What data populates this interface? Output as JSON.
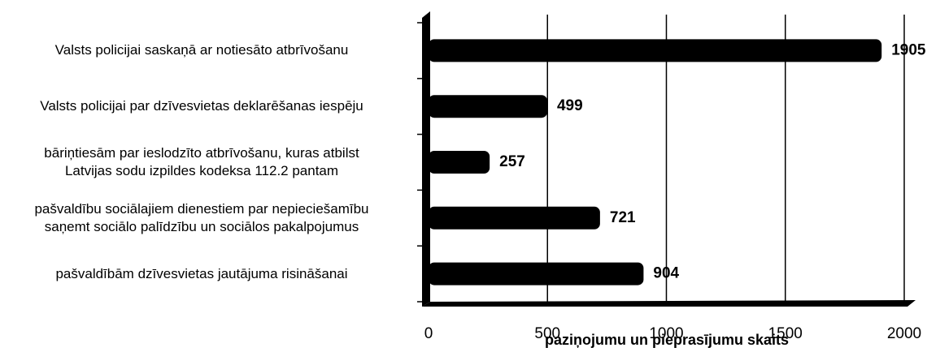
{
  "chart_data": {
    "type": "bar",
    "orientation": "horizontal",
    "categories": [
      "Valsts policijai saskaņā ar notiesāto atbrīvošanu",
      "Valsts policijai par dzīvesvietas deklarēšanas iespēju",
      "bāriņtiesām par ieslodzīto atbrīvošanu, kuras atbilst\nLatvijas sodu izpildes kodeksa 112.2 pantam",
      "pašvaldību sociālajiem dienestiem par nepieciešamību\nsaņemt sociālo palīdzību un sociālos pakalpojumus",
      "pašvaldībām dzīvesvietas jautājuma risināšanai"
    ],
    "values": [
      1905,
      499,
      257,
      721,
      904
    ],
    "color": "#000000",
    "xlabel": "paziņojumu un pieprasījumu skaits",
    "xlim": [
      0,
      2000
    ],
    "xticks": [
      0,
      500,
      1000,
      1500,
      2000
    ],
    "grid": true
  }
}
